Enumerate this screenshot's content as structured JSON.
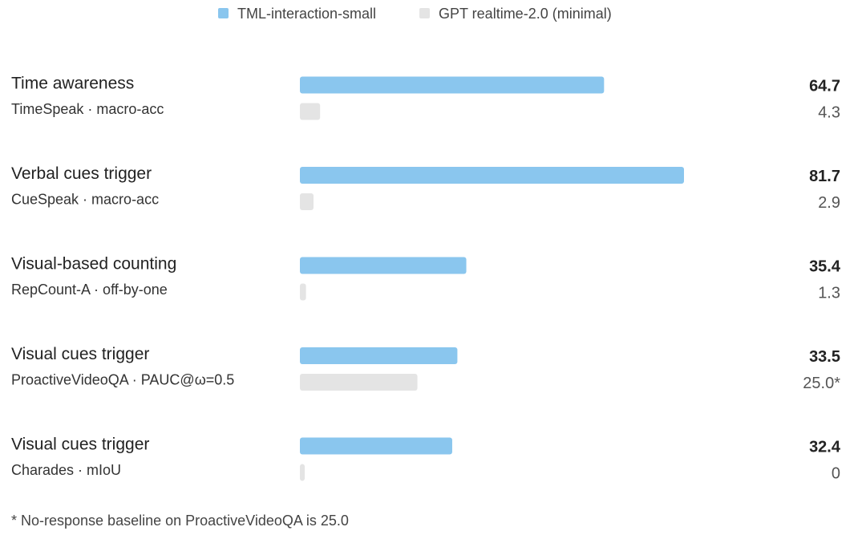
{
  "chart_data": {
    "type": "bar",
    "categories": [
      "Time awareness",
      "Verbal cues trigger",
      "Visual-based counting",
      "Visual cues trigger",
      "Visual cues trigger"
    ],
    "subtitles": [
      "TimeSpeak · macro-acc",
      "CueSpeak · macro-acc",
      "RepCount-A · off-by-one",
      "ProactiveVideoQA · PAUC@ω=0.5",
      "Charades · mIoU"
    ],
    "series": [
      {
        "name": "TML-interaction-small",
        "color": "#8ac6ee",
        "values": [
          64.7,
          81.7,
          35.4,
          33.5,
          32.4
        ]
      },
      {
        "name": "GPT realtime-2.0 (minimal)",
        "color": "#e4e4e4",
        "values": [
          4.3,
          2.9,
          1.3,
          25.0,
          0
        ],
        "value_labels": [
          "4.3",
          "2.9",
          "1.3",
          "25.0*",
          "0"
        ]
      }
    ],
    "footnote": "* No-response baseline on ProactiveVideoQA is 25.0"
  }
}
